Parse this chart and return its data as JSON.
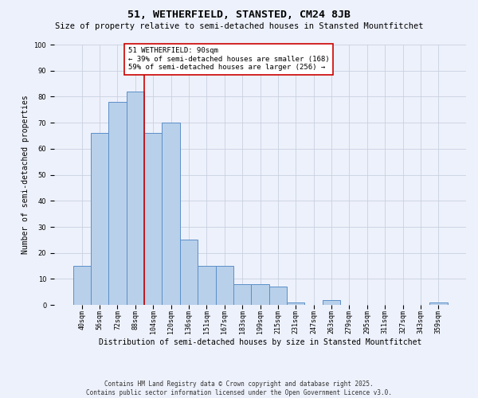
{
  "title": "51, WETHERFIELD, STANSTED, CM24 8JB",
  "subtitle": "Size of property relative to semi-detached houses in Stansted Mountfitchet",
  "xlabel": "Distribution of semi-detached houses by size in Stansted Mountfitchet",
  "ylabel": "Number of semi-detached properties",
  "categories": [
    "40sqm",
    "56sqm",
    "72sqm",
    "88sqm",
    "104sqm",
    "120sqm",
    "136sqm",
    "151sqm",
    "167sqm",
    "183sqm",
    "199sqm",
    "215sqm",
    "231sqm",
    "247sqm",
    "263sqm",
    "279sqm",
    "295sqm",
    "311sqm",
    "327sqm",
    "343sqm",
    "359sqm"
  ],
  "values": [
    15,
    66,
    78,
    82,
    66,
    70,
    25,
    15,
    15,
    8,
    8,
    7,
    1,
    0,
    2,
    0,
    0,
    0,
    0,
    0,
    1
  ],
  "bar_color": "#b8d0ea",
  "bar_edge_color": "#5b8fc9",
  "highlight_index": 3,
  "annotation_text": "51 WETHERFIELD: 90sqm\n← 39% of semi-detached houses are smaller (168)\n59% of semi-detached houses are larger (256) →",
  "annotation_box_color": "#ffffff",
  "annotation_box_edge": "#cc0000",
  "red_line_color": "#cc0000",
  "ylim": [
    0,
    100
  ],
  "yticks": [
    0,
    10,
    20,
    30,
    40,
    50,
    60,
    70,
    80,
    90,
    100
  ],
  "grid_color": "#c8d0e0",
  "footer_line1": "Contains HM Land Registry data © Crown copyright and database right 2025.",
  "footer_line2": "Contains public sector information licensed under the Open Government Licence v3.0.",
  "bg_color": "#edf1fb",
  "title_fontsize": 9.5,
  "subtitle_fontsize": 7.5,
  "xlabel_fontsize": 7,
  "ylabel_fontsize": 7,
  "tick_fontsize": 6,
  "annotation_fontsize": 6.5,
  "footer_fontsize": 5.5
}
